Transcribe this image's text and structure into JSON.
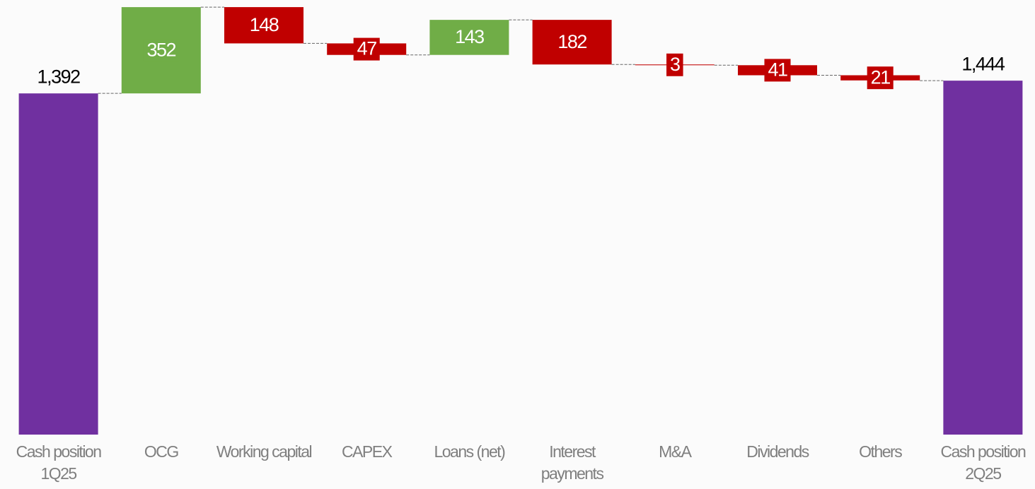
{
  "chart_data": {
    "type": "waterfall",
    "categories": [
      "Cash position 1Q25",
      "OCG",
      "Working capital",
      "CAPEX",
      "Loans (net)",
      "Interest payments",
      "M&A",
      "Dividends",
      "Others",
      "Cash position 2Q25"
    ],
    "measure": [
      "total",
      "relative",
      "relative",
      "relative",
      "relative",
      "relative",
      "relative",
      "relative",
      "relative",
      "total"
    ],
    "values": [
      1392,
      352,
      -148,
      -47,
      143,
      -182,
      -3,
      -41,
      -21,
      1444
    ],
    "value_labels": [
      "1,392",
      "352",
      "148",
      "47",
      "143",
      "182",
      "3",
      "41",
      "21",
      "1,444"
    ],
    "total_color": "#7030a0",
    "increase_color": "#70ad47",
    "decrease_color": "#c00000",
    "ylim": [
      0,
      1750
    ]
  }
}
